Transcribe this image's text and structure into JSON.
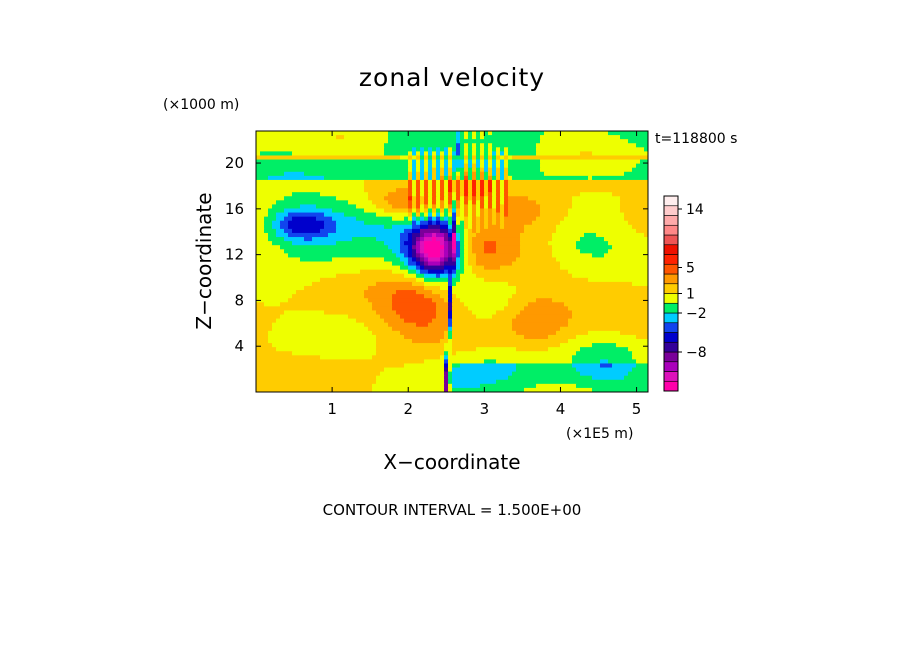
{
  "chart_data": {
    "type": "heatmap",
    "title": "zonal velocity",
    "xlabel": "X−coordinate",
    "ylabel": "Z−coordinate",
    "x_unit": "(×1E5 m)",
    "y_unit": "(×1000 m)",
    "time_label": "t=118800 s",
    "contour_interval_text": "CONTOUR INTERVAL = 1.500E+00",
    "xlim": [
      0,
      5.15
    ],
    "ylim": [
      0,
      22.8
    ],
    "x_ticks": [
      1,
      2,
      3,
      4,
      5
    ],
    "y_ticks": [
      4,
      8,
      12,
      16,
      20
    ],
    "colorbar": {
      "levels": [
        -14,
        -12.5,
        -11,
        -9.5,
        -8,
        -6.5,
        -5,
        -3.5,
        -2,
        -0.5,
        1,
        2.5,
        4,
        5.5,
        7,
        8.5,
        10,
        11.5,
        13,
        14.5,
        16
      ],
      "colors": [
        "#ff00aa",
        "#dd11bb",
        "#aa00bb",
        "#7a0099",
        "#330099",
        "#0000cc",
        "#1144ee",
        "#00ccff",
        "#00ee66",
        "#eeff00",
        "#ffcc00",
        "#ff9900",
        "#ff5500",
        "#ff2200",
        "#ee1100",
        "#ee5555",
        "#ff8888",
        "#ffaaaa",
        "#ffcccc",
        "#ffeeee"
      ],
      "tick_labels": [
        "14",
        "5",
        "1",
        "−2",
        "−8"
      ],
      "tick_values": [
        14,
        5,
        1,
        -2,
        -8
      ]
    },
    "field_features": [
      {
        "type": "jet",
        "x": 2.35,
        "z": 12.5,
        "amp": -12,
        "sx": 0.22,
        "sz": 1.6
      },
      {
        "type": "jet",
        "x": 2.45,
        "z": 12.2,
        "amp": -4,
        "sx": 0.45,
        "sz": 2.5
      },
      {
        "type": "jet",
        "x": 0.6,
        "z": 14.6,
        "amp": -6,
        "sx": 0.3,
        "sz": 1.0
      },
      {
        "type": "jet",
        "x": 0.75,
        "z": 13.5,
        "amp": -2.5,
        "sx": 0.6,
        "sz": 2.4
      },
      {
        "type": "jet",
        "x": 1.6,
        "z": 15.5,
        "amp": -2.3,
        "sx": 0.4,
        "sz": 1.4
      },
      {
        "type": "jet",
        "x": 2.9,
        "z": 12.6,
        "amp": 4.5,
        "sx": 0.3,
        "sz": 1.8
      },
      {
        "type": "jet",
        "x": 2.15,
        "z": 7.8,
        "amp": 4.5,
        "sx": 0.35,
        "sz": 2.0
      },
      {
        "type": "jet",
        "x": 1.9,
        "z": 16.3,
        "amp": 3.5,
        "sx": 0.35,
        "sz": 1.0
      },
      {
        "type": "jet",
        "x": 3.7,
        "z": 6.5,
        "amp": 3.0,
        "sx": 0.3,
        "sz": 1.6
      },
      {
        "type": "jet",
        "x": 3.6,
        "z": 16.0,
        "amp": 2.5,
        "sx": 0.4,
        "sz": 1.5
      },
      {
        "type": "jet",
        "x": 4.3,
        "z": 12.8,
        "amp": -2.2,
        "sx": 0.4,
        "sz": 1.5
      },
      {
        "type": "jet",
        "x": 3.0,
        "z": 2.2,
        "amp": -2.5,
        "sx": 0.5,
        "sz": 1.4
      },
      {
        "type": "jet",
        "x": 4.6,
        "z": 2.5,
        "amp": -2.2,
        "sx": 0.3,
        "sz": 1.5
      },
      {
        "type": "jet",
        "x": 2.8,
        "z": 18.2,
        "amp": 3.0,
        "sx": 0.25,
        "sz": 1.0
      }
    ]
  }
}
